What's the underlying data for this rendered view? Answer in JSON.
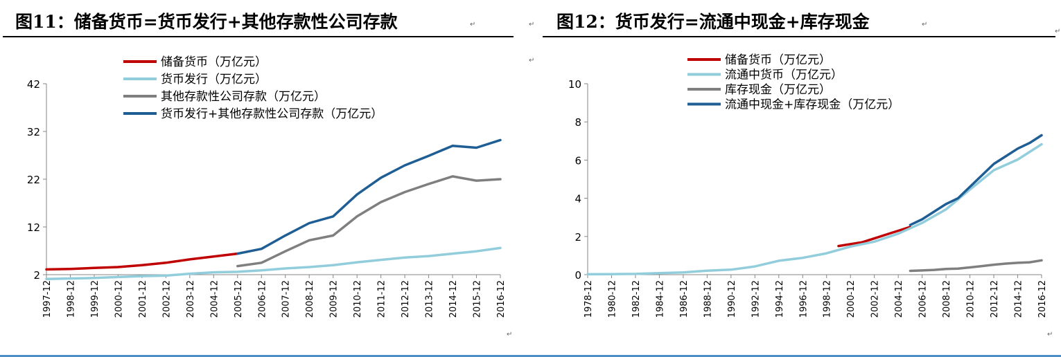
{
  "pilcrow": "↵",
  "panels": [
    {
      "title": "图11：储备货币=货币发行+其他存款性公司存款"
    },
    {
      "title": "图12：货币发行=流通中现金+库存现金"
    }
  ],
  "chart_data": [
    {
      "type": "line",
      "x": [
        "1997-12",
        "1998-12",
        "1999-12",
        "2000-12",
        "2001-12",
        "2002-12",
        "2003-12",
        "2004-12",
        "2005-12",
        "2006-12",
        "2007-12",
        "2008-12",
        "2009-12",
        "2010-12",
        "2011-12",
        "2012-12",
        "2013-12",
        "2014-12",
        "2015-12",
        "2016-12"
      ],
      "ylim": [
        2,
        42
      ],
      "yticks": [
        2,
        12,
        22,
        32,
        42
      ],
      "grid": false,
      "legend_position": "top-left",
      "series": [
        {
          "name": "储备货币（万亿元）",
          "color": "#c00000",
          "points": [
            [
              "1997-12",
              3.1
            ],
            [
              "1998-12",
              3.2
            ],
            [
              "1999-12",
              3.4
            ],
            [
              "2000-12",
              3.6
            ],
            [
              "2001-12",
              4.0
            ],
            [
              "2002-12",
              4.5
            ],
            [
              "2003-12",
              5.2
            ],
            [
              "2004-12",
              5.8
            ],
            [
              "2005-12",
              6.4
            ]
          ]
        },
        {
          "name": "货币发行（万亿元）",
          "color": "#92cddc",
          "points": [
            [
              "1997-12",
              1.1
            ],
            [
              "1998-12",
              1.2
            ],
            [
              "1999-12",
              1.3
            ],
            [
              "2000-12",
              1.5
            ],
            [
              "2001-12",
              1.7
            ],
            [
              "2002-12",
              1.8
            ],
            [
              "2003-12",
              2.2
            ],
            [
              "2004-12",
              2.5
            ],
            [
              "2005-12",
              2.6
            ],
            [
              "2006-12",
              2.9
            ],
            [
              "2007-12",
              3.3
            ],
            [
              "2008-12",
              3.6
            ],
            [
              "2009-12",
              4.0
            ],
            [
              "2010-12",
              4.6
            ],
            [
              "2011-12",
              5.1
            ],
            [
              "2012-12",
              5.6
            ],
            [
              "2013-12",
              5.9
            ],
            [
              "2014-12",
              6.4
            ],
            [
              "2015-12",
              6.9
            ],
            [
              "2016-12",
              7.6
            ]
          ]
        },
        {
          "name": "其他存款性公司存款（万亿元）",
          "color": "#7f7f7f",
          "points": [
            [
              "2005-12",
              3.8
            ],
            [
              "2006-12",
              4.5
            ],
            [
              "2007-12",
              6.9
            ],
            [
              "2008-12",
              9.2
            ],
            [
              "2009-12",
              10.2
            ],
            [
              "2010-12",
              14.2
            ],
            [
              "2011-12",
              17.2
            ],
            [
              "2012-12",
              19.3
            ],
            [
              "2013-12",
              21.0
            ],
            [
              "2014-12",
              22.6
            ],
            [
              "2015-12",
              21.7
            ],
            [
              "2016-12",
              22.0
            ]
          ]
        },
        {
          "name": "货币发行+其他存款性公司存款（万亿元）",
          "color": "#1f5e94",
          "points": [
            [
              "2005-12",
              6.4
            ],
            [
              "2006-12",
              7.4
            ],
            [
              "2007-12",
              10.2
            ],
            [
              "2008-12",
              12.8
            ],
            [
              "2009-12",
              14.2
            ],
            [
              "2010-12",
              18.8
            ],
            [
              "2011-12",
              22.3
            ],
            [
              "2012-12",
              24.9
            ],
            [
              "2013-12",
              26.9
            ],
            [
              "2014-12",
              29.0
            ],
            [
              "2015-12",
              28.6
            ],
            [
              "2016-12",
              30.2
            ]
          ]
        }
      ]
    },
    {
      "type": "line",
      "x": [
        "1978-12",
        "1980-12",
        "1982-12",
        "1984-12",
        "1986-12",
        "1988-12",
        "1990-12",
        "1992-12",
        "1994-12",
        "1996-12",
        "1998-12",
        "2000-12",
        "2002-12",
        "2004-12",
        "2006-12",
        "2008-12",
        "2010-12",
        "2012-12",
        "2014-12",
        "2016-12"
      ],
      "ylim": [
        0,
        10
      ],
      "yticks": [
        0,
        2,
        4,
        6,
        8,
        10
      ],
      "grid": false,
      "legend_position": "top-left",
      "series": [
        {
          "name": "储备货币（万亿元）",
          "color": "#c00000",
          "points": [
            [
              "1999-12",
              1.5
            ],
            [
              "2000-12",
              1.6
            ],
            [
              "2001-12",
              1.7
            ],
            [
              "2002-12",
              1.9
            ],
            [
              "2003-12",
              2.1
            ],
            [
              "2004-12",
              2.3
            ],
            [
              "2005-12",
              2.5
            ]
          ]
        },
        {
          "name": "流通中货币（万亿元）",
          "color": "#92cddc",
          "points": [
            [
              "1978-12",
              0.02
            ],
            [
              "1980-12",
              0.03
            ],
            [
              "1982-12",
              0.04
            ],
            [
              "1984-12",
              0.08
            ],
            [
              "1986-12",
              0.12
            ],
            [
              "1988-12",
              0.21
            ],
            [
              "1990-12",
              0.26
            ],
            [
              "1992-12",
              0.43
            ],
            [
              "1994-12",
              0.73
            ],
            [
              "1996-12",
              0.88
            ],
            [
              "1998-12",
              1.12
            ],
            [
              "2000-12",
              1.47
            ],
            [
              "2002-12",
              1.73
            ],
            [
              "2004-12",
              2.15
            ],
            [
              "2006-12",
              2.71
            ],
            [
              "2008-12",
              3.42
            ],
            [
              "2010-12",
              4.46
            ],
            [
              "2012-12",
              5.47
            ],
            [
              "2014-12",
              6.03
            ],
            [
              "2016-12",
              6.83
            ]
          ]
        },
        {
          "name": "库存现金（万亿元）",
          "color": "#7f7f7f",
          "points": [
            [
              "2005-12",
              0.2
            ],
            [
              "2006-12",
              0.22
            ],
            [
              "2007-12",
              0.25
            ],
            [
              "2008-12",
              0.3
            ],
            [
              "2009-12",
              0.32
            ],
            [
              "2010-12",
              0.38
            ],
            [
              "2011-12",
              0.45
            ],
            [
              "2012-12",
              0.52
            ],
            [
              "2013-12",
              0.58
            ],
            [
              "2014-12",
              0.62
            ],
            [
              "2015-12",
              0.65
            ],
            [
              "2016-12",
              0.75
            ]
          ]
        },
        {
          "name": "流通中现金+库存现金（万亿元）",
          "color": "#1f5e94",
          "points": [
            [
              "2005-12",
              2.6
            ],
            [
              "2006-12",
              2.9
            ],
            [
              "2007-12",
              3.3
            ],
            [
              "2008-12",
              3.7
            ],
            [
              "2009-12",
              4.0
            ],
            [
              "2010-12",
              4.6
            ],
            [
              "2011-12",
              5.2
            ],
            [
              "2012-12",
              5.8
            ],
            [
              "2013-12",
              6.2
            ],
            [
              "2014-12",
              6.6
            ],
            [
              "2015-12",
              6.9
            ],
            [
              "2016-12",
              7.3
            ]
          ]
        }
      ]
    }
  ]
}
